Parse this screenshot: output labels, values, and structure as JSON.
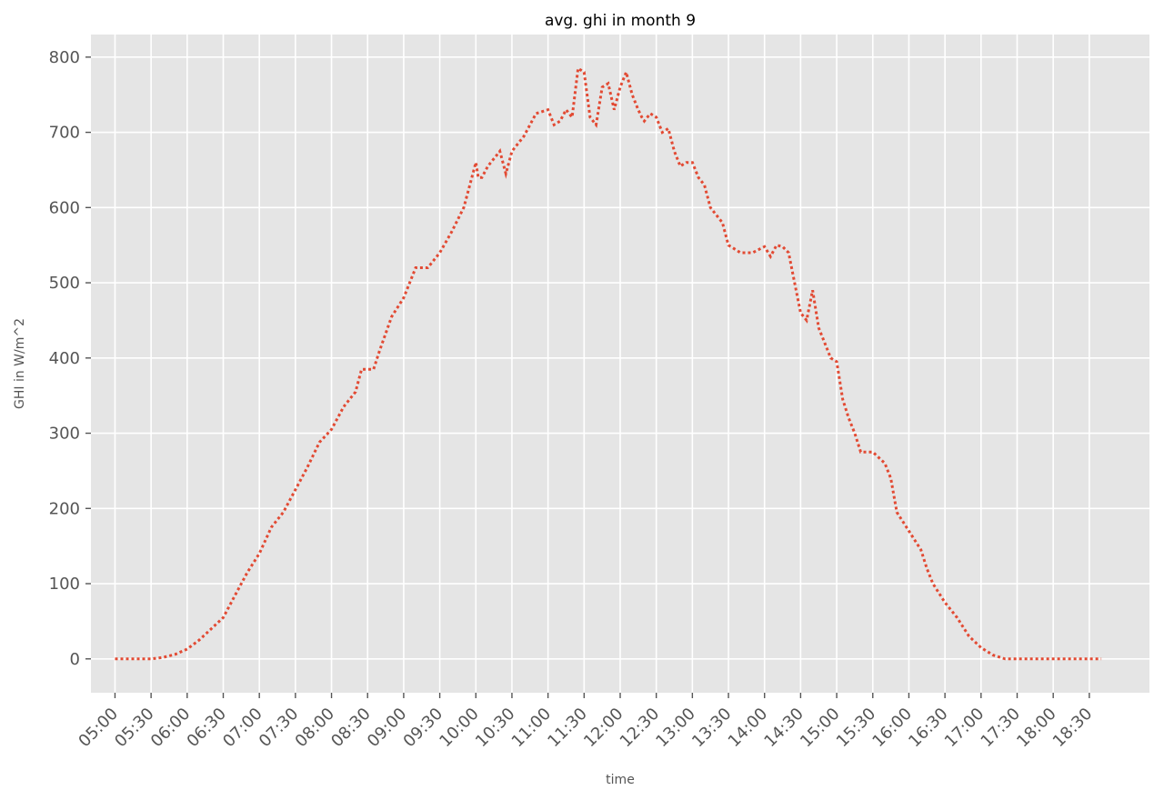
{
  "chart_data": {
    "type": "line",
    "title": "avg. ghi in month 9",
    "xlabel": "time",
    "ylabel": "GHI in W/m^2",
    "x_ticks": [
      "05:00",
      "05:30",
      "06:00",
      "06:30",
      "07:00",
      "07:30",
      "08:00",
      "08:30",
      "09:00",
      "09:30",
      "10:00",
      "10:30",
      "11:00",
      "11:30",
      "12:00",
      "12:30",
      "13:00",
      "13:30",
      "14:00",
      "14:30",
      "15:00",
      "15:30",
      "16:00",
      "16:30",
      "17:00",
      "17:30",
      "18:00",
      "18:30"
    ],
    "y_ticks": [
      0,
      100,
      200,
      300,
      400,
      500,
      600,
      700,
      800
    ],
    "xlim": [
      "04:40",
      "19:20"
    ],
    "ylim": [
      -45,
      830
    ],
    "grid": true,
    "line_style": "dotted",
    "colors": {
      "line": "#E24A33",
      "plot_background": "#E5E5E5",
      "grid": "#FFFFFF"
    },
    "series": [
      {
        "x": [
          "05:00",
          "05:10",
          "05:20",
          "05:30",
          "05:40",
          "05:50",
          "06:00",
          "06:10",
          "06:20",
          "06:30",
          "06:40",
          "06:50",
          "07:00",
          "07:10",
          "07:20",
          "07:30",
          "07:40",
          "07:50",
          "08:00",
          "08:10",
          "08:20",
          "08:25",
          "08:35",
          "08:40",
          "08:50",
          "09:00",
          "09:10",
          "09:20",
          "09:30",
          "09:40",
          "09:50",
          "10:00",
          "10:02",
          "10:05",
          "10:10",
          "10:20",
          "10:25",
          "10:30",
          "10:35",
          "10:40",
          "10:50",
          "11:00",
          "11:05",
          "11:10",
          "11:15",
          "11:20",
          "11:25",
          "11:30",
          "11:35",
          "11:40",
          "11:45",
          "11:50",
          "11:55",
          "12:00",
          "12:05",
          "12:10",
          "12:15",
          "12:18",
          "12:20",
          "12:25",
          "12:30",
          "12:35",
          "12:40",
          "12:45",
          "12:50",
          "12:55",
          "13:00",
          "13:05",
          "13:10",
          "13:15",
          "13:20",
          "13:25",
          "13:30",
          "13:35",
          "13:40",
          "13:50",
          "14:00",
          "14:05",
          "14:10",
          "14:15",
          "14:20",
          "14:25",
          "14:30",
          "14:35",
          "14:40",
          "14:45",
          "14:50",
          "14:55",
          "15:00",
          "15:05",
          "15:10",
          "15:15",
          "15:20",
          "15:30",
          "15:40",
          "15:45",
          "15:50",
          "16:00",
          "16:10",
          "16:15",
          "16:20",
          "16:30",
          "16:40",
          "16:50",
          "17:00",
          "17:10",
          "17:20",
          "17:30",
          "17:40",
          "17:50",
          "18:00",
          "18:10",
          "18:20",
          "18:30",
          "18:40"
        ],
        "values": [
          0,
          0,
          0,
          0,
          2,
          6,
          13,
          25,
          40,
          55,
          85,
          115,
          140,
          175,
          195,
          225,
          255,
          288,
          305,
          335,
          355,
          385,
          385,
          410,
          455,
          480,
          520,
          520,
          540,
          568,
          600,
          660,
          640,
          640,
          655,
          675,
          645,
          675,
          685,
          695,
          725,
          730,
          710,
          715,
          730,
          720,
          785,
          780,
          720,
          710,
          760,
          765,
          730,
          760,
          780,
          750,
          730,
          720,
          715,
          725,
          720,
          700,
          705,
          675,
          655,
          660,
          660,
          640,
          630,
          600,
          590,
          580,
          550,
          545,
          540,
          540,
          548,
          535,
          550,
          548,
          540,
          500,
          460,
          450,
          490,
          440,
          420,
          400,
          395,
          345,
          320,
          300,
          275,
          275,
          260,
          240,
          195,
          170,
          145,
          120,
          100,
          75,
          55,
          30,
          15,
          5,
          0,
          0,
          0,
          0,
          0,
          0,
          0,
          0,
          0
        ],
        "values_note": ""
      }
    ]
  }
}
